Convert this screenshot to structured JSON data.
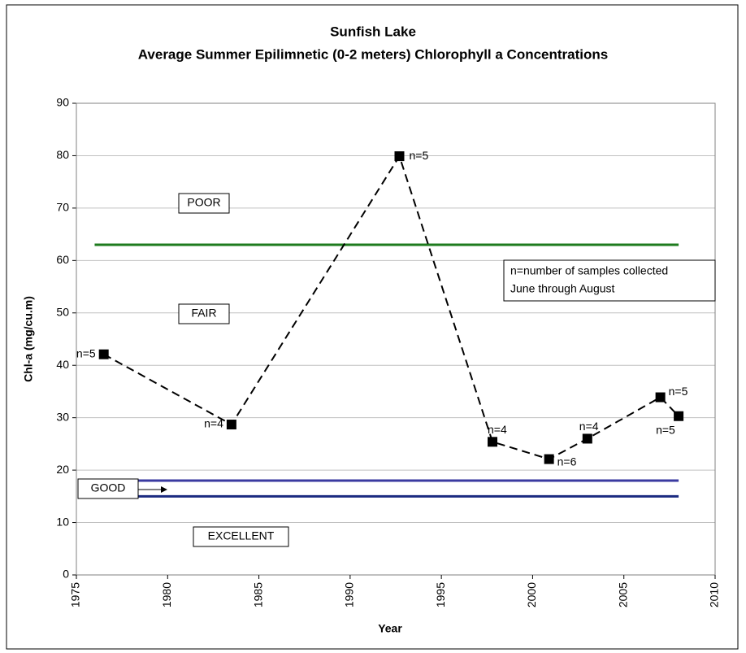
{
  "chart_data": {
    "type": "line",
    "title": "Sunfish Lake",
    "subtitle": "Average Summer Epilimnetic (0-2 meters) Chlorophyll a Concentrations",
    "x_label": "Year",
    "y_label": "Chl-a (mg/cu.m)",
    "x": [
      1976.5,
      1983.5,
      1992.7,
      1997.8,
      2000.9,
      2003,
      2007,
      2008
    ],
    "series": [
      {
        "color": "#000000",
        "values": [
          42.1,
          28.7,
          79.9,
          25.4,
          22.1,
          26,
          33.9,
          30.3
        ],
        "point_labels": [
          "n=5",
          "n=4",
          "n=5",
          "n=4",
          "n=6",
          "n=4",
          "n=5",
          "n=5"
        ]
      }
    ],
    "reference_lines": [
      {
        "value": 63,
        "color": "#1e7b1e",
        "x_extent": [
          1976,
          2008
        ]
      },
      {
        "value": 18,
        "color": "#3a3aa0",
        "x_extent": [
          1976,
          2008
        ]
      },
      {
        "value": 15,
        "color": "#1a2a80",
        "x_extent": [
          1976,
          2008
        ]
      }
    ],
    "zone_labels": [
      "POOR",
      "FAIR",
      "GOOD",
      "EXCELLENT"
    ],
    "note": [
      "n=number of samples collected",
      "June through August"
    ],
    "xlim": [
      1975,
      2010
    ],
    "xticks": [
      1975,
      1980,
      1985,
      1990,
      1995,
      2000,
      2005,
      2010
    ],
    "ylim": [
      0,
      90
    ],
    "yticks": [
      0,
      10,
      20,
      30,
      40,
      50,
      60,
      70,
      80,
      90
    ],
    "grid": true
  }
}
